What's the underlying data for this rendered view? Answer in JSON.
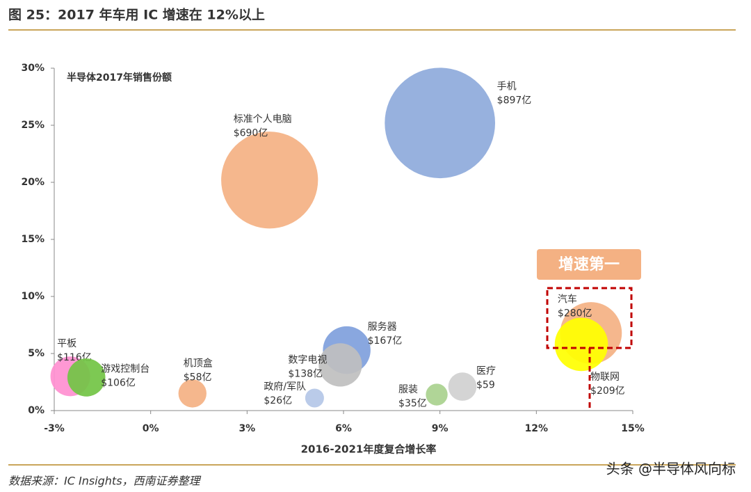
{
  "header": {
    "title": "图 25：2017 年车用 IC 增速在 12%以上"
  },
  "chart_data": {
    "type": "bubble",
    "annotation": "半导体2017年销售份额",
    "x_label": "2016-2021年度复合增长率",
    "highlight": "增速第一",
    "names": [
      "手机",
      "标准个人电脑",
      "服务器",
      "数字电视",
      "政府/军队",
      "服装",
      "医疗",
      "汽车",
      "物联网",
      "平板",
      "游戏控制台",
      "机顶盒"
    ],
    "x": [
      9.0,
      3.7,
      6.1,
      5.9,
      5.1,
      8.9,
      9.7,
      13.7,
      13.4,
      -2.5,
      -2.0,
      1.3
    ],
    "values": [
      25.2,
      20.2,
      5.3,
      4.0,
      1.1,
      1.4,
      2.1,
      6.8,
      5.8,
      3.0,
      2.9,
      1.5
    ],
    "sizes": [
      897,
      690,
      167,
      138,
      26,
      35,
      59,
      280,
      209,
      116,
      106,
      58
    ],
    "size_labels": [
      "$897亿",
      "$690亿",
      "$167亿",
      "$138亿",
      "$26亿",
      "$35亿",
      "$59",
      "$280亿",
      "$209亿",
      "$116亿",
      "$106亿",
      "$58亿"
    ],
    "colors": [
      "#8eaadb",
      "#f4b183",
      "#7f9fdc",
      "#bfbfbf",
      "#b4c7e7",
      "#a9d18e",
      "#d0d0d0",
      "#f4b183",
      "#ffff00",
      "#ff8fd0",
      "#72c444",
      "#f4b183"
    ],
    "xlim": [
      -3,
      15
    ],
    "ylim": [
      0,
      30
    ],
    "xticks": [
      {
        "value": -3,
        "label": "-3%"
      },
      {
        "value": 0,
        "label": "0%"
      },
      {
        "value": 3,
        "label": "3%"
      },
      {
        "value": 6,
        "label": "6%"
      },
      {
        "value": 9,
        "label": "9%"
      },
      {
        "value": 12,
        "label": "12%"
      },
      {
        "value": 15,
        "label": "15%"
      }
    ],
    "yticks": [
      {
        "value": 0,
        "label": "0%"
      },
      {
        "value": 5,
        "label": "5%"
      },
      {
        "value": 10,
        "label": "10%"
      },
      {
        "value": 15,
        "label": "15%"
      },
      {
        "value": 20,
        "label": "20%"
      },
      {
        "value": 25,
        "label": "25%"
      },
      {
        "value": 30,
        "label": "30%"
      }
    ]
  },
  "source": "数据来源：IC Insights，西南证券整理",
  "watermark": "头条 @半导体风向标"
}
